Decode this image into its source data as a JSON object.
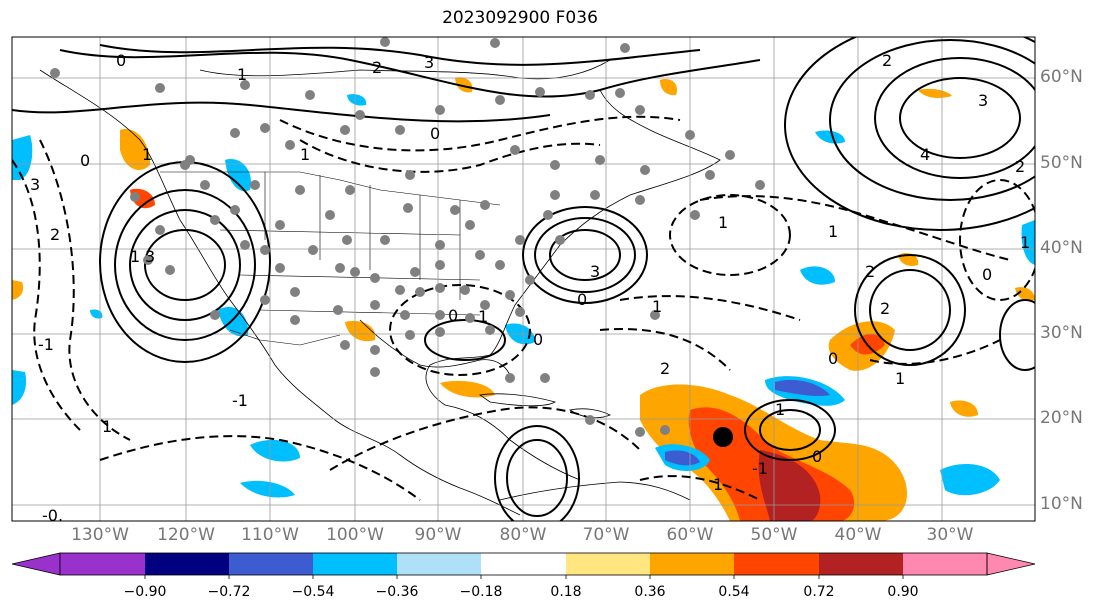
{
  "title": "2023092900 F036",
  "lon_labels": [
    "130°W",
    "120°W",
    "110°W",
    "100°W",
    "90°W",
    "80°W",
    "70°W",
    "60°W",
    "50°W",
    "40°W",
    "30°W"
  ],
  "lat_labels": [
    "60°N",
    "50°N",
    "40°N",
    "30°N",
    "20°N",
    "10°N"
  ],
  "contour_labels": {
    "c1": "0",
    "c2": "2",
    "c3": "3",
    "c4": "0",
    "c5": "2",
    "c6": "3",
    "c7": "2",
    "c8": "4",
    "c9": "3",
    "c10": "2",
    "c11": "1",
    "c12": "3",
    "c13": "1",
    "c14": "1",
    "c15": "0",
    "c16": "3",
    "c17": "0",
    "c18": "1",
    "c19": "1",
    "c20": "2",
    "c21": "1",
    "c22": "0",
    "c23": "1",
    "c24": "-1",
    "c25": "0",
    "c26": "2",
    "c27": "1",
    "c28": "1",
    "c29": "0",
    "c30": "-1",
    "c31": "-0",
    "c32": "0",
    "c33": "1",
    "c34": "2",
    "c35": "1",
    "c36": "-0.",
    "c37": "-1",
    "c38": "0",
    "c39": "1",
    "c40": "1"
  },
  "colorbar": {
    "labels": [
      "−0.90",
      "−0.72",
      "−0.54",
      "−0.36",
      "−0.18",
      "0.18",
      "0.36",
      "0.54",
      "0.72",
      "0.90"
    ],
    "colors": [
      "#9932cc",
      "#000080",
      "#3d5cd1",
      "#00bfff",
      "#b0e0f8",
      "#ffffff",
      "#ffe680",
      "#ffa500",
      "#ff4500",
      "#b22222",
      "#ff88b0"
    ]
  },
  "storm_marker": "tropical cyclone position"
}
